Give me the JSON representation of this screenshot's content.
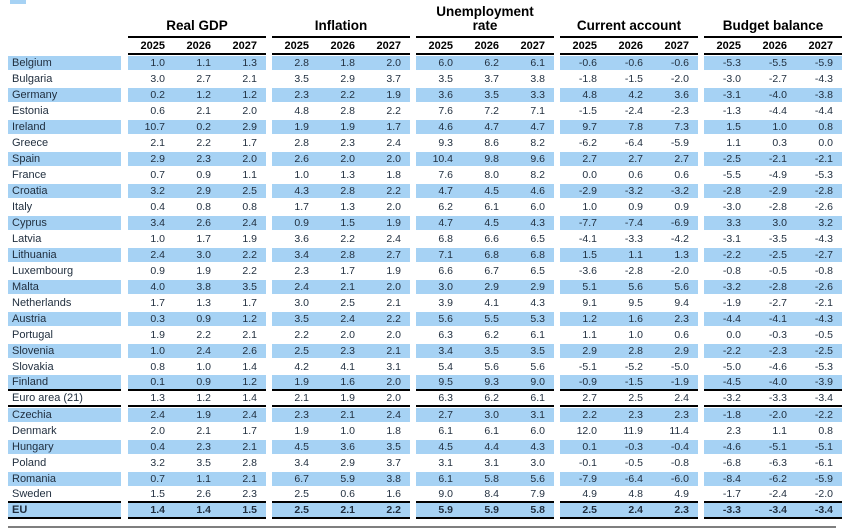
{
  "accent_color": "#a6d2f4",
  "table": {
    "col_groups": [
      {
        "label": "Real GDP"
      },
      {
        "label": "Inflation"
      },
      {
        "label": "Unemployment rate"
      },
      {
        "label": "Current account"
      },
      {
        "label": "Budget balance"
      }
    ],
    "years": [
      "2025",
      "2026",
      "2027"
    ],
    "rows": [
      {
        "name": "Belgium",
        "shaded": true,
        "bold": false,
        "rule": false,
        "values": [
          "1.0",
          "1.1",
          "1.3",
          "2.8",
          "1.8",
          "2.0",
          "6.0",
          "6.2",
          "6.1",
          "-0.6",
          "-0.6",
          "-0.6",
          "-5.3",
          "-5.5",
          "-5.9"
        ]
      },
      {
        "name": "Bulgaria",
        "shaded": false,
        "bold": false,
        "rule": false,
        "values": [
          "3.0",
          "2.7",
          "2.1",
          "3.5",
          "2.9",
          "3.7",
          "3.5",
          "3.7",
          "3.8",
          "-1.8",
          "-1.5",
          "-2.0",
          "-3.0",
          "-2.7",
          "-4.3"
        ]
      },
      {
        "name": "Germany",
        "shaded": true,
        "bold": false,
        "rule": false,
        "values": [
          "0.2",
          "1.2",
          "1.2",
          "2.3",
          "2.2",
          "1.9",
          "3.6",
          "3.5",
          "3.3",
          "4.8",
          "4.2",
          "3.6",
          "-3.1",
          "-4.0",
          "-3.8"
        ]
      },
      {
        "name": "Estonia",
        "shaded": false,
        "bold": false,
        "rule": false,
        "values": [
          "0.6",
          "2.1",
          "2.0",
          "4.8",
          "2.8",
          "2.2",
          "7.6",
          "7.2",
          "7.1",
          "-1.5",
          "-2.4",
          "-2.3",
          "-1.3",
          "-4.4",
          "-4.4"
        ]
      },
      {
        "name": "Ireland",
        "shaded": true,
        "bold": false,
        "rule": false,
        "values": [
          "10.7",
          "0.2",
          "2.9",
          "1.9",
          "1.9",
          "1.7",
          "4.6",
          "4.7",
          "4.7",
          "9.7",
          "7.8",
          "7.3",
          "1.5",
          "1.0",
          "0.8"
        ]
      },
      {
        "name": "Greece",
        "shaded": false,
        "bold": false,
        "rule": false,
        "values": [
          "2.1",
          "2.2",
          "1.7",
          "2.8",
          "2.3",
          "2.4",
          "9.3",
          "8.6",
          "8.2",
          "-6.2",
          "-6.4",
          "-5.9",
          "1.1",
          "0.3",
          "0.0"
        ]
      },
      {
        "name": "Spain",
        "shaded": true,
        "bold": false,
        "rule": false,
        "values": [
          "2.9",
          "2.3",
          "2.0",
          "2.6",
          "2.0",
          "2.0",
          "10.4",
          "9.8",
          "9.6",
          "2.7",
          "2.7",
          "2.7",
          "-2.5",
          "-2.1",
          "-2.1"
        ]
      },
      {
        "name": "France",
        "shaded": false,
        "bold": false,
        "rule": false,
        "values": [
          "0.7",
          "0.9",
          "1.1",
          "1.0",
          "1.3",
          "1.8",
          "7.6",
          "8.0",
          "8.2",
          "0.0",
          "0.6",
          "0.6",
          "-5.5",
          "-4.9",
          "-5.3"
        ]
      },
      {
        "name": "Croatia",
        "shaded": true,
        "bold": false,
        "rule": false,
        "values": [
          "3.2",
          "2.9",
          "2.5",
          "4.3",
          "2.8",
          "2.2",
          "4.7",
          "4.5",
          "4.6",
          "-2.9",
          "-3.2",
          "-3.2",
          "-2.8",
          "-2.9",
          "-2.8"
        ]
      },
      {
        "name": "Italy",
        "shaded": false,
        "bold": false,
        "rule": false,
        "values": [
          "0.4",
          "0.8",
          "0.8",
          "1.7",
          "1.3",
          "2.0",
          "6.2",
          "6.1",
          "6.0",
          "1.0",
          "0.9",
          "0.9",
          "-3.0",
          "-2.8",
          "-2.6"
        ]
      },
      {
        "name": "Cyprus",
        "shaded": true,
        "bold": false,
        "rule": false,
        "values": [
          "3.4",
          "2.6",
          "2.4",
          "0.9",
          "1.5",
          "1.9",
          "4.7",
          "4.5",
          "4.3",
          "-7.7",
          "-7.4",
          "-6.9",
          "3.3",
          "3.0",
          "3.2"
        ]
      },
      {
        "name": "Latvia",
        "shaded": false,
        "bold": false,
        "rule": false,
        "values": [
          "1.0",
          "1.7",
          "1.9",
          "3.6",
          "2.2",
          "2.4",
          "6.8",
          "6.6",
          "6.5",
          "-4.1",
          "-3.3",
          "-4.2",
          "-3.1",
          "-3.5",
          "-4.3"
        ]
      },
      {
        "name": "Lithuania",
        "shaded": true,
        "bold": false,
        "rule": false,
        "values": [
          "2.4",
          "3.0",
          "2.2",
          "3.4",
          "2.8",
          "2.7",
          "7.1",
          "6.8",
          "6.8",
          "1.5",
          "1.1",
          "1.3",
          "-2.2",
          "-2.5",
          "-2.7"
        ]
      },
      {
        "name": "Luxembourg",
        "shaded": false,
        "bold": false,
        "rule": false,
        "values": [
          "0.9",
          "1.9",
          "2.2",
          "2.3",
          "1.7",
          "1.9",
          "6.6",
          "6.7",
          "6.5",
          "-3.6",
          "-2.8",
          "-2.0",
          "-0.8",
          "-0.5",
          "-0.8"
        ]
      },
      {
        "name": "Malta",
        "shaded": true,
        "bold": false,
        "rule": false,
        "values": [
          "4.0",
          "3.8",
          "3.5",
          "2.4",
          "2.1",
          "2.0",
          "3.0",
          "2.9",
          "2.9",
          "5.1",
          "5.6",
          "5.6",
          "-3.2",
          "-2.8",
          "-2.6"
        ]
      },
      {
        "name": "Netherlands",
        "shaded": false,
        "bold": false,
        "rule": false,
        "values": [
          "1.7",
          "1.3",
          "1.7",
          "3.0",
          "2.5",
          "2.1",
          "3.9",
          "4.1",
          "4.3",
          "9.1",
          "9.5",
          "9.4",
          "-1.9",
          "-2.7",
          "-2.1"
        ]
      },
      {
        "name": "Austria",
        "shaded": true,
        "bold": false,
        "rule": false,
        "values": [
          "0.3",
          "0.9",
          "1.2",
          "3.5",
          "2.4",
          "2.2",
          "5.6",
          "5.5",
          "5.3",
          "1.2",
          "1.6",
          "2.3",
          "-4.4",
          "-4.1",
          "-4.3"
        ]
      },
      {
        "name": "Portugal",
        "shaded": false,
        "bold": false,
        "rule": false,
        "values": [
          "1.9",
          "2.2",
          "2.1",
          "2.2",
          "2.0",
          "2.0",
          "6.3",
          "6.2",
          "6.1",
          "1.1",
          "1.0",
          "0.6",
          "0.0",
          "-0.3",
          "-0.5"
        ]
      },
      {
        "name": "Slovenia",
        "shaded": true,
        "bold": false,
        "rule": false,
        "values": [
          "1.0",
          "2.4",
          "2.6",
          "2.5",
          "2.3",
          "2.1",
          "3.4",
          "3.5",
          "3.5",
          "2.9",
          "2.8",
          "2.9",
          "-2.2",
          "-2.3",
          "-2.5"
        ]
      },
      {
        "name": "Slovakia",
        "shaded": false,
        "bold": false,
        "rule": false,
        "values": [
          "0.8",
          "1.0",
          "1.4",
          "4.2",
          "4.1",
          "3.1",
          "5.4",
          "5.6",
          "5.6",
          "-5.1",
          "-5.2",
          "-5.0",
          "-5.0",
          "-4.6",
          "-5.3"
        ]
      },
      {
        "name": "Finland",
        "shaded": true,
        "bold": false,
        "rule": true,
        "values": [
          "0.1",
          "0.9",
          "1.2",
          "1.9",
          "1.6",
          "2.0",
          "9.5",
          "9.3",
          "9.0",
          "-0.9",
          "-1.5",
          "-1.9",
          "-4.5",
          "-4.0",
          "-3.9"
        ]
      },
      {
        "name": "Euro area (21)",
        "shaded": false,
        "bold": false,
        "rule": true,
        "values": [
          "1.3",
          "1.2",
          "1.4",
          "2.1",
          "1.9",
          "2.0",
          "6.3",
          "6.2",
          "6.1",
          "2.7",
          "2.5",
          "2.4",
          "-3.2",
          "-3.3",
          "-3.4"
        ]
      },
      {
        "name": "Czechia",
        "shaded": true,
        "bold": false,
        "rule": false,
        "values": [
          "2.4",
          "1.9",
          "2.4",
          "2.3",
          "2.1",
          "2.4",
          "2.7",
          "3.0",
          "3.1",
          "2.2",
          "2.3",
          "2.3",
          "-1.8",
          "-2.0",
          "-2.2"
        ]
      },
      {
        "name": "Denmark",
        "shaded": false,
        "bold": false,
        "rule": false,
        "values": [
          "2.0",
          "2.1",
          "1.7",
          "1.9",
          "1.0",
          "1.8",
          "6.1",
          "6.1",
          "6.0",
          "12.0",
          "11.9",
          "11.4",
          "2.3",
          "1.1",
          "0.8"
        ]
      },
      {
        "name": "Hungary",
        "shaded": true,
        "bold": false,
        "rule": false,
        "values": [
          "0.4",
          "2.3",
          "2.1",
          "4.5",
          "3.6",
          "3.5",
          "4.5",
          "4.4",
          "4.3",
          "0.1",
          "-0.3",
          "-0.4",
          "-4.6",
          "-5.1",
          "-5.1"
        ]
      },
      {
        "name": "Poland",
        "shaded": false,
        "bold": false,
        "rule": false,
        "values": [
          "3.2",
          "3.5",
          "2.8",
          "3.4",
          "2.9",
          "3.7",
          "3.1",
          "3.1",
          "3.0",
          "-0.1",
          "-0.5",
          "-0.8",
          "-6.8",
          "-6.3",
          "-6.1"
        ]
      },
      {
        "name": "Romania",
        "shaded": true,
        "bold": false,
        "rule": false,
        "values": [
          "0.7",
          "1.1",
          "2.1",
          "6.7",
          "5.9",
          "3.8",
          "6.1",
          "5.8",
          "5.6",
          "-7.9",
          "-6.4",
          "-6.0",
          "-8.4",
          "-6.2",
          "-5.9"
        ]
      },
      {
        "name": "Sweden",
        "shaded": false,
        "bold": false,
        "rule": true,
        "values": [
          "1.5",
          "2.6",
          "2.3",
          "2.5",
          "0.6",
          "1.6",
          "9.0",
          "8.4",
          "7.9",
          "4.9",
          "4.8",
          "4.9",
          "-1.7",
          "-2.4",
          "-2.0"
        ]
      },
      {
        "name": "EU",
        "shaded": true,
        "bold": true,
        "rule": true,
        "values": [
          "1.4",
          "1.4",
          "1.5",
          "2.5",
          "2.1",
          "2.2",
          "5.9",
          "5.9",
          "5.8",
          "2.5",
          "2.4",
          "2.3",
          "-3.3",
          "-3.4",
          "-3.4"
        ]
      }
    ]
  }
}
